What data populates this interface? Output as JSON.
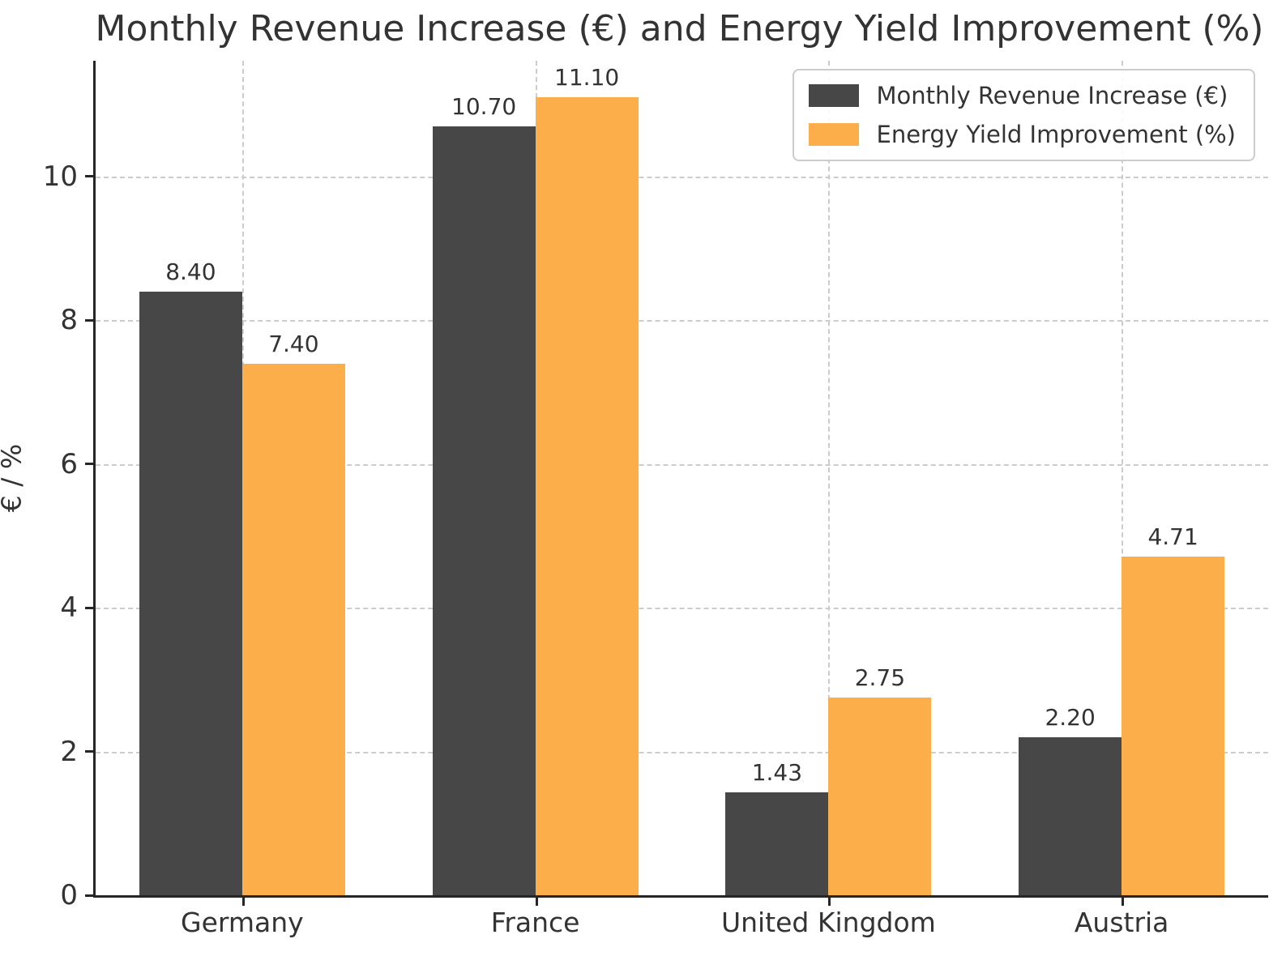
{
  "title": "Monthly Revenue Increase (€) and Energy Yield Improvement (%)",
  "colors": {
    "revenue_bar": "#474747",
    "yield_bar": "#FBAE4A",
    "grid": "#cccccc",
    "spine": "#262626",
    "text": "#333333",
    "background": "#ffffff"
  },
  "chart_data": {
    "type": "bar",
    "title": "Monthly Revenue Increase (€) and Energy Yield Improvement (%)",
    "xlabel": "",
    "ylabel": "€ / %",
    "categories": [
      "Germany",
      "France",
      "United Kingdom",
      "Austria"
    ],
    "series": [
      {
        "name": "Monthly Revenue Increase (€)",
        "color": "#474747",
        "values": [
          8.4,
          10.7,
          1.43,
          2.2
        ],
        "labels": [
          "8.40",
          "10.70",
          "1.43",
          "2.20"
        ]
      },
      {
        "name": "Energy Yield Improvement (%)",
        "color": "#FBAE4A",
        "values": [
          7.4,
          11.1,
          2.75,
          4.71
        ],
        "labels": [
          "7.40",
          "11.10",
          "2.75",
          "4.71"
        ]
      }
    ],
    "yticks": [
      0,
      2,
      4,
      6,
      8,
      10
    ],
    "ylim": [
      0,
      11.61
    ],
    "grid": true,
    "grid_style": "dashed",
    "legend_position": "upper right",
    "bar_width_fraction": 0.35
  }
}
